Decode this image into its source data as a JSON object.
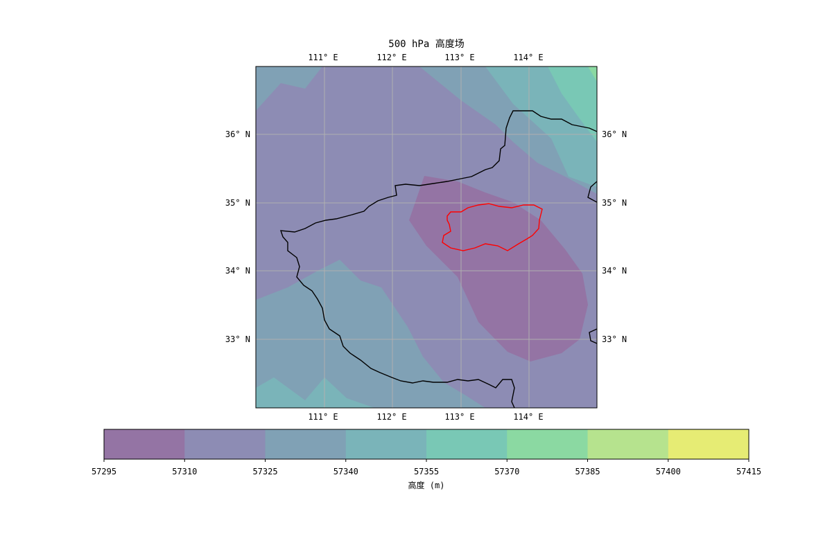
{
  "title": "500 hPa 高度场",
  "lon_ticks": [
    "111° E",
    "112° E",
    "113° E",
    "114° E"
  ],
  "lat_ticks": [
    "36° N",
    "35° N",
    "34° N",
    "33° N"
  ],
  "colorbar": {
    "label": "高度 (m)",
    "levels": [
      57295,
      57310,
      57325,
      57340,
      57355,
      57370,
      57385,
      57400,
      57415
    ],
    "colors": [
      "#9474a4",
      "#8d8cb4",
      "#80a1b5",
      "#7ab4b9",
      "#79c8b5",
      "#8bd9a2",
      "#b6e38e",
      "#e6ec74"
    ]
  },
  "contour_colors": {
    "band_57295": "#9474a4",
    "band_57310": "#8d8cb4",
    "band_57325": "#80a1b5",
    "band_57340": "#7ab4b9",
    "band_57355": "#79c8b5",
    "band_57370": "#8bd9a2"
  },
  "boundary_colors": {
    "province": "#000000",
    "region": "#ff0000"
  }
}
